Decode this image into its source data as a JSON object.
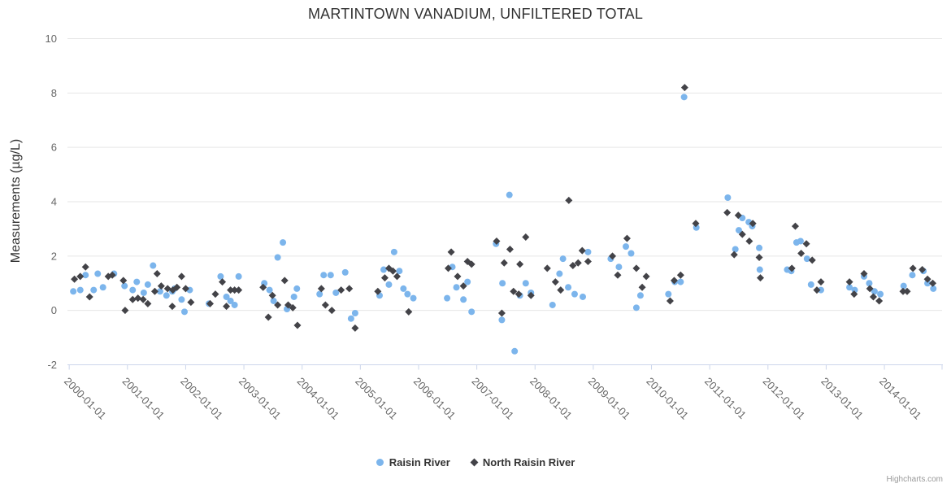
{
  "chart": {
    "title": "MARTINTOWN VANADIUM, UNFILTERED TOTAL",
    "credits": "Highcharts.com"
  },
  "chart_data": {
    "type": "scatter",
    "title": "MARTINTOWN VANADIUM, UNFILTERED TOTAL",
    "xlabel": "",
    "ylabel": "Measurements (µg/L)",
    "x_unit": "decimal_year",
    "xlim": [
      1999.97,
      2014.99
    ],
    "ylim": [
      -2,
      10
    ],
    "yticks": [
      -2,
      0,
      2,
      4,
      6,
      8,
      10
    ],
    "xticks": [
      {
        "year": 2000,
        "label": "2000-01-01"
      },
      {
        "year": 2001,
        "label": "2001-01-01"
      },
      {
        "year": 2002,
        "label": "2002-01-01"
      },
      {
        "year": 2003,
        "label": "2003-01-01"
      },
      {
        "year": 2004,
        "label": "2004-01-01"
      },
      {
        "year": 2005,
        "label": "2005-01-01"
      },
      {
        "year": 2006,
        "label": "2006-01-01"
      },
      {
        "year": 2007,
        "label": "2007-01-01"
      },
      {
        "year": 2008,
        "label": "2008-01-01"
      },
      {
        "year": 2009,
        "label": "2009-01-01"
      },
      {
        "year": 2010,
        "label": "2010-01-01"
      },
      {
        "year": 2011,
        "label": "2011-01-01"
      },
      {
        "year": 2012,
        "label": "2012-01-01"
      },
      {
        "year": 2013,
        "label": "2013-01-01"
      },
      {
        "year": 2014,
        "label": "2014-01-01"
      }
    ],
    "grid": "horizontal",
    "legend_position": "bottom-center",
    "colors": {
      "grid": "#e6e6e6",
      "axis_line": "#ccd6eb",
      "tick": "#ccd6eb",
      "axis_label": "#666666",
      "title": "#333333",
      "legend_text": "#333333",
      "credits": "#999999"
    },
    "series": [
      {
        "name": "Raisin River",
        "marker": "circle",
        "color": "#7cb5ec",
        "points": [
          [
            2000.07,
            0.7
          ],
          [
            2000.19,
            0.75
          ],
          [
            2000.28,
            1.3
          ],
          [
            2000.42,
            0.75
          ],
          [
            2000.49,
            1.35
          ],
          [
            2000.58,
            0.85
          ],
          [
            2000.77,
            1.35
          ],
          [
            2000.95,
            0.9
          ],
          [
            2001.09,
            0.75
          ],
          [
            2001.16,
            1.05
          ],
          [
            2001.28,
            0.65
          ],
          [
            2001.35,
            0.95
          ],
          [
            2001.44,
            1.65
          ],
          [
            2001.56,
            0.7
          ],
          [
            2001.67,
            0.55
          ],
          [
            2001.77,
            0.7
          ],
          [
            2001.81,
            0.8
          ],
          [
            2001.93,
            0.4
          ],
          [
            2001.98,
            -0.05
          ],
          [
            2002.07,
            0.75
          ],
          [
            2002.4,
            0.25
          ],
          [
            2002.6,
            1.25
          ],
          [
            2002.7,
            0.5
          ],
          [
            2002.77,
            0.35
          ],
          [
            2002.84,
            0.2
          ],
          [
            2002.91,
            1.25
          ],
          [
            2003.35,
            1.0
          ],
          [
            2003.44,
            0.75
          ],
          [
            2003.51,
            0.35
          ],
          [
            2003.58,
            1.95
          ],
          [
            2003.67,
            2.5
          ],
          [
            2003.74,
            0.05
          ],
          [
            2003.86,
            0.5
          ],
          [
            2003.91,
            0.8
          ],
          [
            2004.3,
            0.6
          ],
          [
            2004.37,
            1.3
          ],
          [
            2004.49,
            1.3
          ],
          [
            2004.58,
            0.65
          ],
          [
            2004.74,
            1.4
          ],
          [
            2004.84,
            -0.3
          ],
          [
            2004.91,
            -0.1
          ],
          [
            2005.33,
            0.55
          ],
          [
            2005.4,
            1.5
          ],
          [
            2005.49,
            0.95
          ],
          [
            2005.58,
            2.15
          ],
          [
            2005.67,
            1.45
          ],
          [
            2005.74,
            0.8
          ],
          [
            2005.81,
            0.6
          ],
          [
            2005.91,
            0.45
          ],
          [
            2006.49,
            0.45
          ],
          [
            2006.58,
            1.6
          ],
          [
            2006.65,
            0.85
          ],
          [
            2006.77,
            0.4
          ],
          [
            2006.84,
            1.05
          ],
          [
            2006.91,
            -0.05
          ],
          [
            2007.33,
            2.45
          ],
          [
            2007.43,
            -0.35
          ],
          [
            2007.44,
            1.0
          ],
          [
            2007.56,
            4.25
          ],
          [
            2007.65,
            -1.5
          ],
          [
            2007.74,
            0.55
          ],
          [
            2007.84,
            1.0
          ],
          [
            2007.93,
            0.65
          ],
          [
            2008.3,
            0.2
          ],
          [
            2008.42,
            1.35
          ],
          [
            2008.48,
            1.9
          ],
          [
            2008.57,
            0.85
          ],
          [
            2008.68,
            0.6
          ],
          [
            2008.82,
            0.5
          ],
          [
            2008.91,
            2.15
          ],
          [
            2009.3,
            1.9
          ],
          [
            2009.44,
            1.6
          ],
          [
            2009.56,
            2.35
          ],
          [
            2009.65,
            2.1
          ],
          [
            2009.74,
            0.1
          ],
          [
            2009.81,
            0.55
          ],
          [
            2010.29,
            0.6
          ],
          [
            2010.4,
            1.05
          ],
          [
            2010.5,
            1.05
          ],
          [
            2010.56,
            7.85
          ],
          [
            2010.77,
            3.05
          ],
          [
            2011.31,
            4.15
          ],
          [
            2011.44,
            2.25
          ],
          [
            2011.5,
            2.95
          ],
          [
            2011.56,
            3.4
          ],
          [
            2011.67,
            3.25
          ],
          [
            2011.73,
            3.1
          ],
          [
            2011.85,
            2.3
          ],
          [
            2011.86,
            1.5
          ],
          [
            2012.33,
            1.5
          ],
          [
            2012.4,
            1.45
          ],
          [
            2012.49,
            2.5
          ],
          [
            2012.56,
            2.55
          ],
          [
            2012.67,
            1.9
          ],
          [
            2012.74,
            0.95
          ],
          [
            2012.91,
            0.75
          ],
          [
            2013.4,
            0.85
          ],
          [
            2013.49,
            0.75
          ],
          [
            2013.65,
            1.25
          ],
          [
            2013.74,
            1.0
          ],
          [
            2013.83,
            0.7
          ],
          [
            2013.93,
            0.6
          ],
          [
            2014.33,
            0.9
          ],
          [
            2014.48,
            1.3
          ],
          [
            2014.67,
            1.45
          ],
          [
            2014.74,
            1.0
          ],
          [
            2014.84,
            0.8
          ]
        ]
      },
      {
        "name": "North Raisin River",
        "marker": "diamond",
        "color": "#434348",
        "points": [
          [
            2000.09,
            1.15
          ],
          [
            2000.19,
            1.25
          ],
          [
            2000.28,
            1.6
          ],
          [
            2000.35,
            0.5
          ],
          [
            2000.67,
            1.25
          ],
          [
            2000.74,
            1.3
          ],
          [
            2000.93,
            1.1
          ],
          [
            2000.96,
            0.0
          ],
          [
            2001.09,
            0.4
          ],
          [
            2001.18,
            0.45
          ],
          [
            2001.27,
            0.4
          ],
          [
            2001.35,
            0.25
          ],
          [
            2001.47,
            0.7
          ],
          [
            2001.51,
            1.35
          ],
          [
            2001.58,
            0.9
          ],
          [
            2001.69,
            0.8
          ],
          [
            2001.77,
            0.15
          ],
          [
            2001.78,
            0.75
          ],
          [
            2001.85,
            0.85
          ],
          [
            2001.93,
            1.25
          ],
          [
            2002.0,
            0.8
          ],
          [
            2002.09,
            0.3
          ],
          [
            2002.42,
            0.25
          ],
          [
            2002.51,
            0.6
          ],
          [
            2002.63,
            1.05
          ],
          [
            2002.7,
            0.15
          ],
          [
            2002.77,
            0.75
          ],
          [
            2002.84,
            0.75
          ],
          [
            2002.91,
            0.75
          ],
          [
            2003.33,
            0.85
          ],
          [
            2003.42,
            -0.25
          ],
          [
            2003.49,
            0.55
          ],
          [
            2003.58,
            0.2
          ],
          [
            2003.7,
            1.1
          ],
          [
            2003.76,
            0.2
          ],
          [
            2003.84,
            0.1
          ],
          [
            2003.92,
            -0.55
          ],
          [
            2004.33,
            0.8
          ],
          [
            2004.4,
            0.2
          ],
          [
            2004.51,
            0.0
          ],
          [
            2004.67,
            0.75
          ],
          [
            2004.81,
            0.8
          ],
          [
            2004.91,
            -0.65
          ],
          [
            2005.3,
            0.7
          ],
          [
            2005.42,
            1.2
          ],
          [
            2005.49,
            1.55
          ],
          [
            2005.56,
            1.45
          ],
          [
            2005.63,
            1.25
          ],
          [
            2005.83,
            -0.05
          ],
          [
            2006.51,
            1.55
          ],
          [
            2006.56,
            2.15
          ],
          [
            2006.67,
            1.25
          ],
          [
            2006.77,
            0.9
          ],
          [
            2006.84,
            1.8
          ],
          [
            2006.91,
            1.7
          ],
          [
            2007.34,
            2.55
          ],
          [
            2007.43,
            -0.1
          ],
          [
            2007.47,
            1.75
          ],
          [
            2007.57,
            2.25
          ],
          [
            2007.63,
            0.7
          ],
          [
            2007.72,
            0.6
          ],
          [
            2007.74,
            1.7
          ],
          [
            2007.84,
            2.7
          ],
          [
            2007.93,
            0.55
          ],
          [
            2008.21,
            1.55
          ],
          [
            2008.35,
            1.05
          ],
          [
            2008.44,
            0.75
          ],
          [
            2008.58,
            4.05
          ],
          [
            2008.65,
            1.65
          ],
          [
            2008.74,
            1.75
          ],
          [
            2008.81,
            2.2
          ],
          [
            2008.91,
            1.8
          ],
          [
            2009.33,
            2.0
          ],
          [
            2009.42,
            1.3
          ],
          [
            2009.58,
            2.65
          ],
          [
            2009.74,
            1.55
          ],
          [
            2009.84,
            0.85
          ],
          [
            2009.91,
            1.25
          ],
          [
            2010.32,
            0.35
          ],
          [
            2010.39,
            1.1
          ],
          [
            2010.5,
            1.3
          ],
          [
            2010.57,
            8.2
          ],
          [
            2010.76,
            3.2
          ],
          [
            2011.3,
            3.6
          ],
          [
            2011.42,
            2.05
          ],
          [
            2011.49,
            3.5
          ],
          [
            2011.56,
            2.8
          ],
          [
            2011.68,
            2.55
          ],
          [
            2011.74,
            3.2
          ],
          [
            2011.85,
            1.95
          ],
          [
            2011.87,
            1.2
          ],
          [
            2012.41,
            1.55
          ],
          [
            2012.47,
            3.1
          ],
          [
            2012.57,
            2.1
          ],
          [
            2012.66,
            2.45
          ],
          [
            2012.76,
            1.85
          ],
          [
            2012.84,
            0.75
          ],
          [
            2012.91,
            1.05
          ],
          [
            2013.4,
            1.05
          ],
          [
            2013.48,
            0.6
          ],
          [
            2013.65,
            1.35
          ],
          [
            2013.75,
            0.8
          ],
          [
            2013.81,
            0.5
          ],
          [
            2013.91,
            0.35
          ],
          [
            2014.32,
            0.7
          ],
          [
            2014.39,
            0.7
          ],
          [
            2014.49,
            1.55
          ],
          [
            2014.65,
            1.5
          ],
          [
            2014.74,
            1.15
          ],
          [
            2014.83,
            1.0
          ]
        ]
      }
    ]
  }
}
